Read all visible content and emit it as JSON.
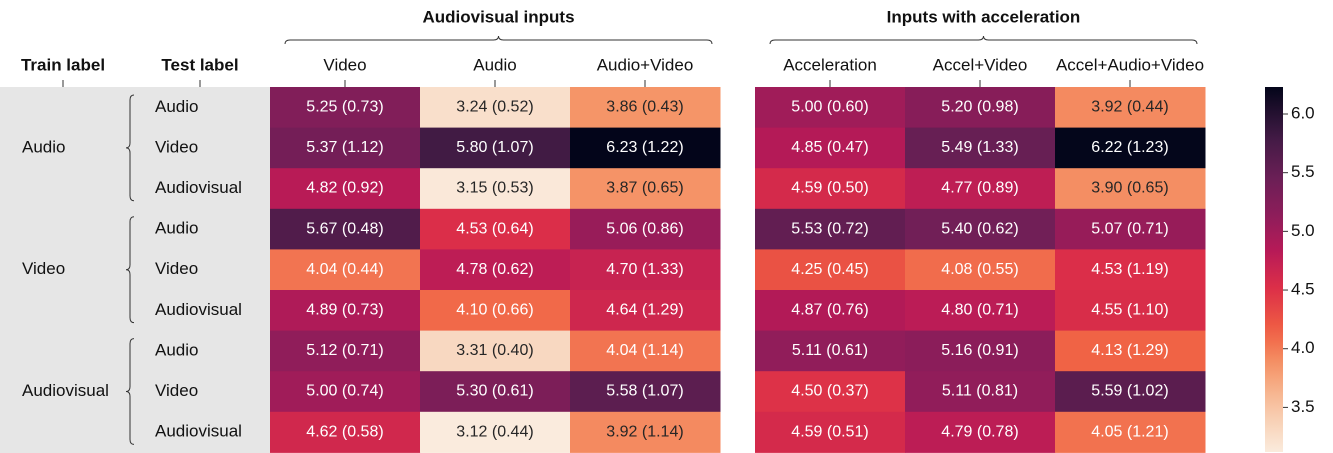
{
  "chart_data": {
    "type": "heatmap",
    "row_header": [
      "Train label",
      "Test label"
    ],
    "column_groups": [
      {
        "title": "Audiovisual inputs",
        "columns": [
          "Video",
          "Audio",
          "Audio+Video"
        ]
      },
      {
        "title": "Inputs with acceleration",
        "columns": [
          "Acceleration",
          "Accel+Video",
          "Accel+Audio+Video"
        ]
      }
    ],
    "row_groups": [
      {
        "name": "Audio",
        "rows": [
          "Audio",
          "Video",
          "Audiovisual"
        ]
      },
      {
        "name": "Video",
        "rows": [
          "Audio",
          "Video",
          "Audiovisual"
        ]
      },
      {
        "name": "Audiovisual",
        "rows": [
          "Audio",
          "Video",
          "Audiovisual"
        ]
      }
    ],
    "values": [
      [
        5.25,
        3.24,
        3.86,
        5.0,
        5.2,
        3.92
      ],
      [
        5.37,
        5.8,
        6.23,
        4.85,
        5.49,
        6.22
      ],
      [
        4.82,
        3.15,
        3.87,
        4.59,
        4.77,
        3.9
      ],
      [
        5.67,
        4.53,
        5.06,
        5.53,
        5.4,
        5.07
      ],
      [
        4.04,
        4.78,
        4.7,
        4.25,
        4.08,
        4.53
      ],
      [
        4.89,
        4.1,
        4.64,
        4.87,
        4.8,
        4.55
      ],
      [
        5.12,
        3.31,
        4.04,
        5.11,
        5.16,
        4.13
      ],
      [
        5.0,
        5.3,
        5.58,
        4.5,
        5.11,
        5.59
      ],
      [
        4.62,
        3.12,
        3.92,
        4.59,
        4.79,
        4.05
      ]
    ],
    "value_labels": [
      [
        "5.25 (0.73)",
        "3.24 (0.52)",
        "3.86 (0.43)",
        "5.00 (0.60)",
        "5.20 (0.98)",
        "3.92 (0.44)"
      ],
      [
        "5.37 (1.12)",
        "5.80 (1.07)",
        "6.23 (1.22)",
        "4.85 (0.47)",
        "5.49 (1.33)",
        "6.22 (1.23)"
      ],
      [
        "4.82 (0.92)",
        "3.15 (0.53)",
        "3.87 (0.65)",
        "4.59 (0.50)",
        "4.77 (0.89)",
        "3.90 (0.65)"
      ],
      [
        "5.67 (0.48)",
        "4.53 (0.64)",
        "5.06 (0.86)",
        "5.53 (0.72)",
        "5.40 (0.62)",
        "5.07 (0.71)"
      ],
      [
        "4.04 (0.44)",
        "4.78 (0.62)",
        "4.70 (1.33)",
        "4.25 (0.45)",
        "4.08 (0.55)",
        "4.53 (1.19)"
      ],
      [
        "4.89 (0.73)",
        "4.10 (0.66)",
        "4.64 (1.29)",
        "4.87 (0.76)",
        "4.80 (0.71)",
        "4.55 (1.10)"
      ],
      [
        "5.12 (0.71)",
        "3.31 (0.40)",
        "4.04 (1.14)",
        "5.11 (0.61)",
        "5.16 (0.91)",
        "4.13 (1.29)"
      ],
      [
        "5.00 (0.74)",
        "5.30 (0.61)",
        "5.58 (1.07)",
        "4.50 (0.37)",
        "5.11 (0.81)",
        "5.59 (1.02)"
      ],
      [
        "4.62 (0.58)",
        "3.12 (0.44)",
        "3.92 (1.14)",
        "4.59 (0.51)",
        "4.79 (0.78)",
        "4.05 (1.21)"
      ]
    ],
    "colormap": "rocket_r",
    "zlim": [
      3.12,
      6.23
    ],
    "zticks": [
      3.5,
      {
        "value": 4,
        "label": "4.0"
      },
      4.5,
      {
        "value": 5,
        "label": "5.0"
      },
      5.5,
      {
        "value": 6,
        "label": "6.0"
      }
    ]
  }
}
